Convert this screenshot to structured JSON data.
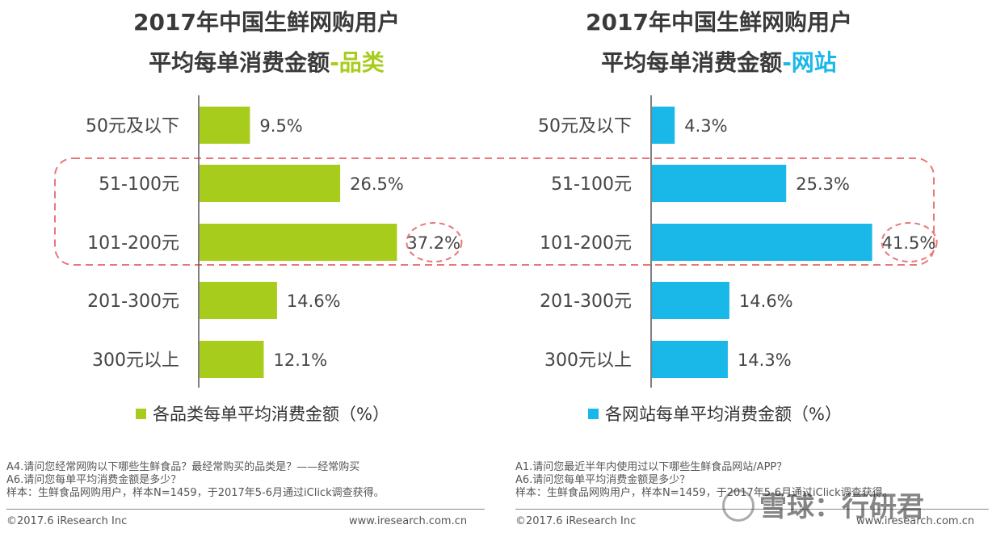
{
  "left": {
    "title_line1": "2017年中国生鲜网购用户",
    "title_line2_main": "平均每单消费金额",
    "title_line2_hl": "-品类",
    "legend": "各品类每单平均消费金额（%）",
    "color": "#a8cc1c"
  },
  "right": {
    "title_line1": "2017年中国生鲜网购用户",
    "title_line2_main": "平均每单消费金额",
    "title_line2_hl": "-网站",
    "legend": "各网站每单平均消费金额（%）",
    "color": "#1ab8e8"
  },
  "chart_data": [
    {
      "type": "bar",
      "orientation": "horizontal",
      "title": "2017年中国生鲜网购用户平均每单消费金额-品类",
      "categories": [
        "50元及以下",
        "51-100元",
        "101-200元",
        "201-300元",
        "300元以上"
      ],
      "values": [
        9.5,
        26.5,
        37.2,
        14.6,
        12.1
      ],
      "labels": [
        "9.5%",
        "26.5%",
        "37.2%",
        "14.6%",
        "12.1%"
      ],
      "series_name": "各品类每单平均消费金额（%）",
      "highlight_index": 2,
      "xlim": [
        0,
        40
      ]
    },
    {
      "type": "bar",
      "orientation": "horizontal",
      "title": "2017年中国生鲜网购用户平均每单消费金额-网站",
      "categories": [
        "50元及以下",
        "51-100元",
        "101-200元",
        "201-300元",
        "300元以上"
      ],
      "values": [
        4.3,
        25.3,
        41.5,
        14.6,
        14.3
      ],
      "labels": [
        "4.3%",
        "25.3%",
        "41.5%",
        "14.6%",
        "14.3%"
      ],
      "series_name": "各网站每单平均消费金额（%）",
      "highlight_index": 2,
      "xlim": [
        0,
        40
      ]
    }
  ],
  "notes_left": [
    "A4.请问您经常网购以下哪些生鲜食品？最经常购买的品类是？——经常购买",
    "A6.请问您每单平均消费金额是多少？",
    "样本：生鲜食品网购用户，样本N=1459，于2017年5-6月通过iClick调查获得。"
  ],
  "notes_right": [
    "A1.请问您最近半年内使用过以下哪些生鲜食品网站/APP？",
    "A6.请问您每单平均消费金额是多少？",
    "样本：生鲜食品网购用户，样本N=1459，于2017年5-6月通过iClick调查获得。"
  ],
  "footer": {
    "copyright_left": "©2017.6 iResearch Inc",
    "url_left": "www.iresearch.com.cn",
    "copyright_right": "©2017.6 iResearch Inc",
    "url_right": "www.iresearch.com.cn"
  },
  "watermark": "雪球：行研君"
}
